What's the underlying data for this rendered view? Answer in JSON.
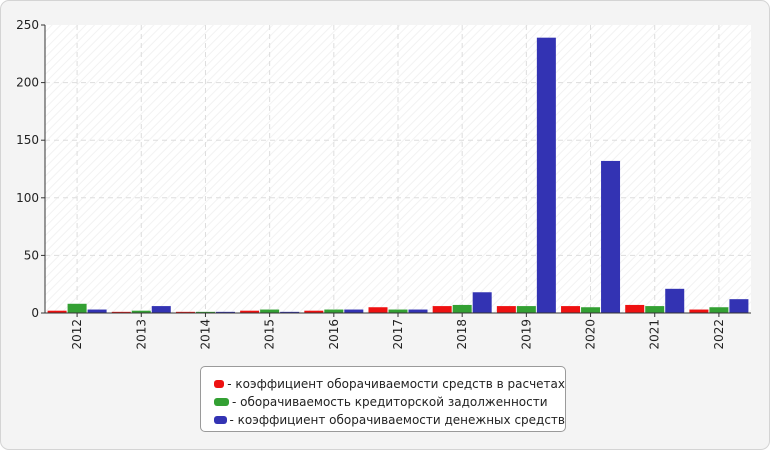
{
  "chart_data": {
    "type": "bar",
    "categories": [
      "2012",
      "2013",
      "2014",
      "2015",
      "2016",
      "2017",
      "2018",
      "2019",
      "2020",
      "2021",
      "2022"
    ],
    "series": [
      {
        "name": "- коэффициент оборачиваемости средств в расчетах",
        "color": "#ee1111",
        "values": [
          2,
          1,
          1,
          2,
          2,
          5,
          6,
          6,
          6,
          7,
          3
        ]
      },
      {
        "name": "- оборачиваемость кредиторской задолженности",
        "color": "#33a033",
        "values": [
          8,
          2,
          1,
          3,
          3,
          3,
          7,
          6,
          5,
          6,
          5
        ]
      },
      {
        "name": "- коэффициент оборачиваемости денежных средств",
        "color": "#3333b3",
        "values": [
          3,
          6,
          1,
          1,
          3,
          3,
          18,
          239,
          132,
          21,
          12
        ]
      }
    ],
    "y_ticks": [
      "0",
      "50",
      "100",
      "150",
      "200",
      "250"
    ],
    "ylim": [
      0,
      250
    ],
    "grid": true,
    "legend_position": "bottom-center"
  }
}
